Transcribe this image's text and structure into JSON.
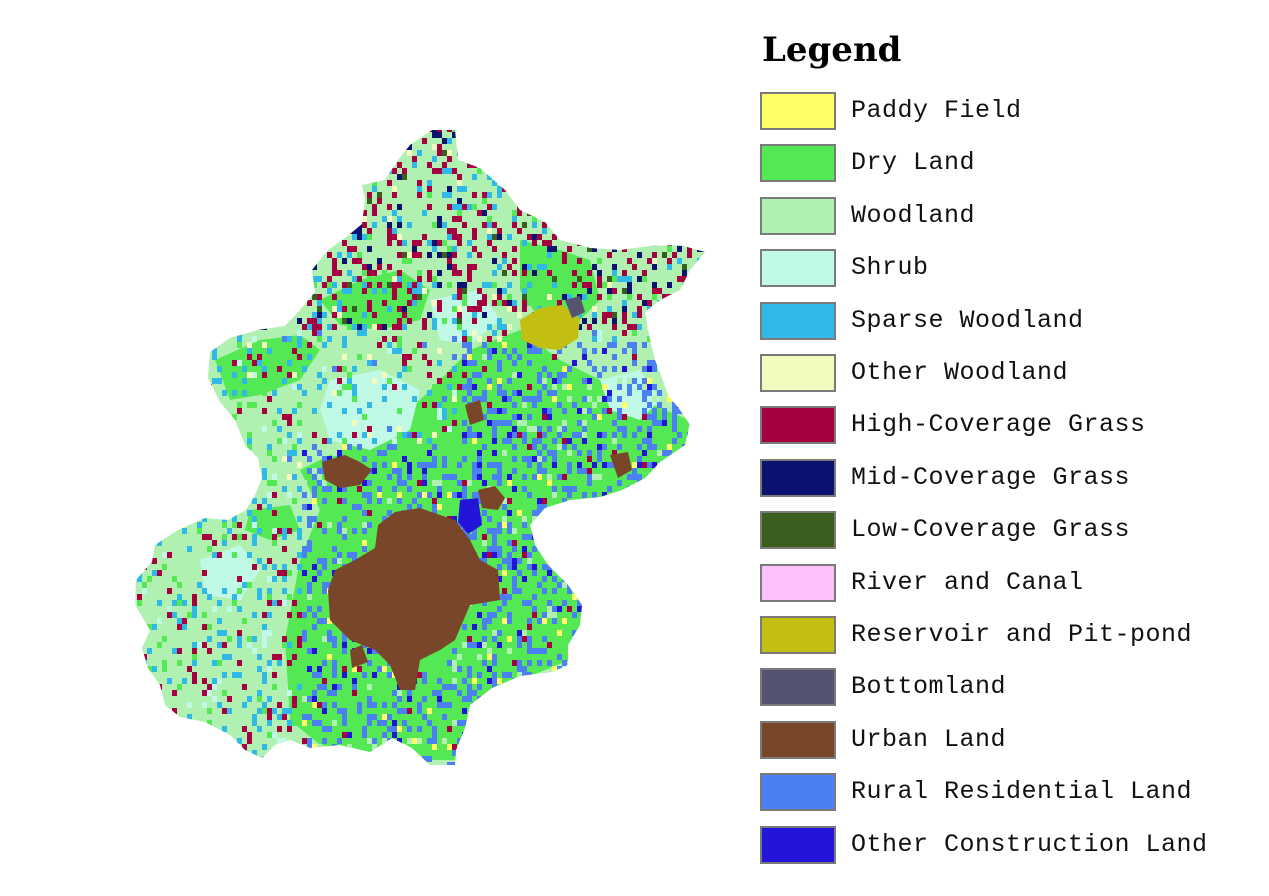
{
  "legend": {
    "title": "Legend",
    "items": [
      {
        "key": "paddy_field",
        "label": "Paddy Field",
        "color": "#ffff66"
      },
      {
        "key": "dry_land",
        "label": "Dry Land",
        "color": "#55e855"
      },
      {
        "key": "woodland",
        "label": "Woodland",
        "color": "#b0f0b0"
      },
      {
        "key": "shrub",
        "label": "Shrub",
        "color": "#c0fae6"
      },
      {
        "key": "sparse_woodland",
        "label": "Sparse Woodland",
        "color": "#30b8e6"
      },
      {
        "key": "other_woodland",
        "label": "Other Woodland",
        "color": "#f2fabe"
      },
      {
        "key": "high_coverage_grass",
        "label": "High-Coverage Grass",
        "color": "#a50040"
      },
      {
        "key": "mid_coverage_grass",
        "label": "Mid-Coverage Grass",
        "color": "#0d1270"
      },
      {
        "key": "low_coverage_grass",
        "label": "Low-Coverage Grass",
        "color": "#3a5e1e"
      },
      {
        "key": "river_and_canal",
        "label": "River and Canal",
        "color": "#fcc0fa"
      },
      {
        "key": "reservoir_and_pit_pond",
        "label": "Reservoir and Pit-pond",
        "color": "#c2be12"
      },
      {
        "key": "bottomland",
        "label": "Bottomland",
        "color": "#545470"
      },
      {
        "key": "urban_land",
        "label": "Urban Land",
        "color": "#7a462a"
      },
      {
        "key": "rural_residential_land",
        "label": "Rural Residential Land",
        "color": "#4a80f2"
      },
      {
        "key": "other_construction_land",
        "label": "Other Construction Land",
        "color": "#2214d8"
      }
    ]
  }
}
